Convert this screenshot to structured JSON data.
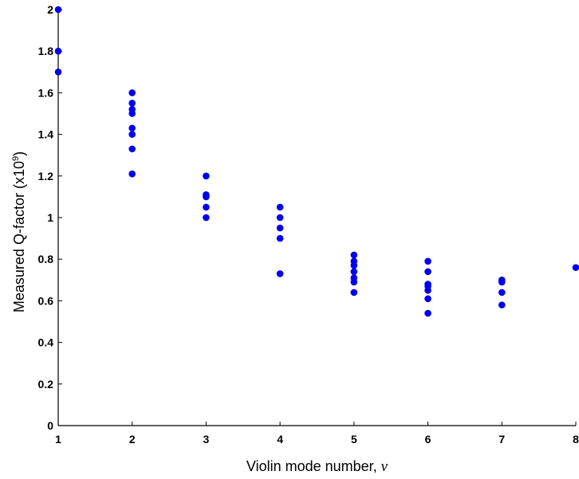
{
  "chart_data": {
    "type": "scatter",
    "title": "",
    "xlabel": "Violin mode number, ",
    "xlabel_symbol": "v",
    "ylabel": "Measured Q-factor (x10",
    "ylabel_exponent": "9",
    "ylabel_suffix": ")",
    "xlim": [
      1,
      8
    ],
    "ylim": [
      0,
      2
    ],
    "xticks": [
      "1",
      "2",
      "3",
      "4",
      "5",
      "6",
      "7",
      "8"
    ],
    "yticks": [
      "0",
      "0.2",
      "0.4",
      "0.6",
      "0.8",
      "1",
      "1.2",
      "1.4",
      "1.6",
      "1.8",
      "2"
    ],
    "grid": false,
    "marker_color": "#0000ee",
    "series": [
      {
        "points": [
          {
            "x": 1,
            "y": 2.0
          },
          {
            "x": 1,
            "y": 1.8
          },
          {
            "x": 1,
            "y": 1.7
          },
          {
            "x": 2,
            "y": 1.6
          },
          {
            "x": 2,
            "y": 1.55
          },
          {
            "x": 2,
            "y": 1.52
          },
          {
            "x": 2,
            "y": 1.5
          },
          {
            "x": 2,
            "y": 1.43
          },
          {
            "x": 2,
            "y": 1.4
          },
          {
            "x": 2,
            "y": 1.33
          },
          {
            "x": 2,
            "y": 1.21
          },
          {
            "x": 3,
            "y": 1.2
          },
          {
            "x": 3,
            "y": 1.11
          },
          {
            "x": 3,
            "y": 1.1
          },
          {
            "x": 3,
            "y": 1.05
          },
          {
            "x": 3,
            "y": 1.0
          },
          {
            "x": 4,
            "y": 1.05
          },
          {
            "x": 4,
            "y": 1.0
          },
          {
            "x": 4,
            "y": 0.95
          },
          {
            "x": 4,
            "y": 0.9
          },
          {
            "x": 4,
            "y": 0.73
          },
          {
            "x": 5,
            "y": 0.82
          },
          {
            "x": 5,
            "y": 0.79
          },
          {
            "x": 5,
            "y": 0.77
          },
          {
            "x": 5,
            "y": 0.74
          },
          {
            "x": 5,
            "y": 0.71
          },
          {
            "x": 5,
            "y": 0.69
          },
          {
            "x": 5,
            "y": 0.64
          },
          {
            "x": 6,
            "y": 0.79
          },
          {
            "x": 6,
            "y": 0.74
          },
          {
            "x": 6,
            "y": 0.68
          },
          {
            "x": 6,
            "y": 0.67
          },
          {
            "x": 6,
            "y": 0.65
          },
          {
            "x": 6,
            "y": 0.61
          },
          {
            "x": 6,
            "y": 0.54
          },
          {
            "x": 7,
            "y": 0.7
          },
          {
            "x": 7,
            "y": 0.69
          },
          {
            "x": 7,
            "y": 0.64
          },
          {
            "x": 7,
            "y": 0.58
          },
          {
            "x": 8,
            "y": 0.76
          }
        ]
      }
    ]
  }
}
